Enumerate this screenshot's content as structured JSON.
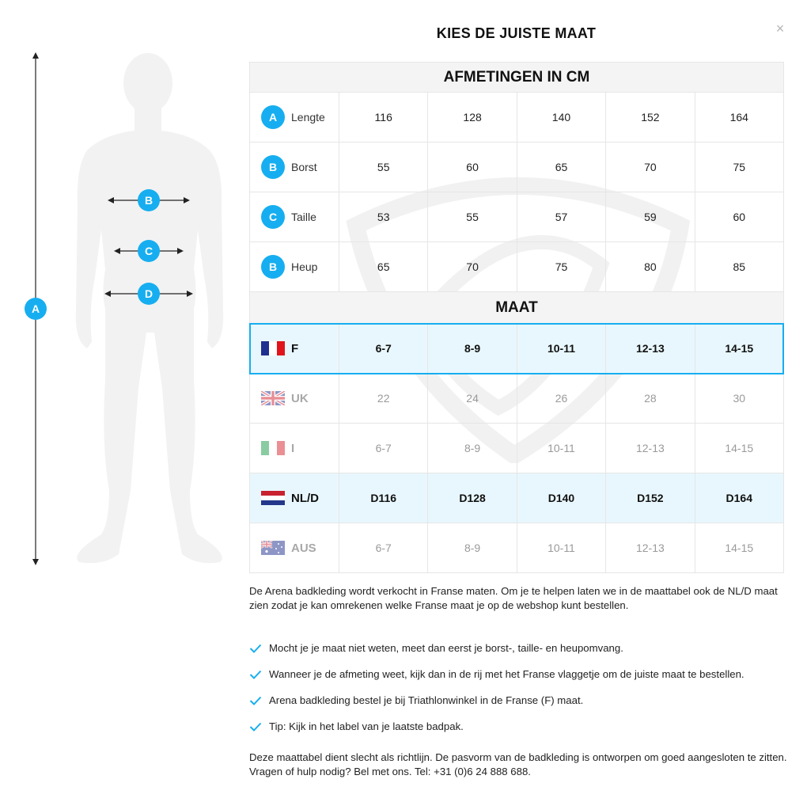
{
  "modal": {
    "title": "KIES DE JUISTE MAAT",
    "close_label": "×"
  },
  "figure": {
    "badges": {
      "a": "A",
      "b": "B",
      "c": "C",
      "d": "D"
    }
  },
  "table": {
    "measurements_heading": "AFMETINGEN IN CM",
    "measurements": [
      {
        "badge": "A",
        "label": "Lengte",
        "values": [
          "116",
          "128",
          "140",
          "152",
          "164"
        ]
      },
      {
        "badge": "B",
        "label": "Borst",
        "values": [
          "55",
          "60",
          "65",
          "70",
          "75"
        ]
      },
      {
        "badge": "C",
        "label": "Taille",
        "values": [
          "53",
          "55",
          "57",
          "59",
          "60"
        ]
      },
      {
        "badge": "B",
        "label": "Heup",
        "values": [
          "65",
          "70",
          "75",
          "80",
          "85"
        ]
      }
    ],
    "sizes_heading": "MAAT",
    "sizes": [
      {
        "flag": "france-flag-icon",
        "code": "F",
        "values": [
          "6-7",
          "8-9",
          "10-11",
          "12-13",
          "14-15"
        ]
      },
      {
        "flag": "uk-flag-icon",
        "code": "UK",
        "values": [
          "22",
          "24",
          "26",
          "28",
          "30"
        ]
      },
      {
        "flag": "italy-flag-icon",
        "code": "I",
        "values": [
          "6-7",
          "8-9",
          "10-11",
          "12-13",
          "14-15"
        ]
      },
      {
        "flag": "netherlands-flag-icon",
        "code": "NL/D",
        "values": [
          "D116",
          "D128",
          "D140",
          "D152",
          "D164"
        ]
      },
      {
        "flag": "australia-flag-icon",
        "code": "AUS",
        "values": [
          "6-7",
          "8-9",
          "10-11",
          "12-13",
          "14-15"
        ]
      }
    ]
  },
  "intro": "De Arena badkleding wordt verkocht in Franse maten. Om je te helpen laten we in de maattabel ook de NL/D maat zien zodat je kan omrekenen welke Franse maat je op de webshop kunt bestellen.",
  "tips": [
    "Mocht je je maat niet weten, meet dan eerst je borst-, taille- en heupomvang.",
    "Wanneer je de afmeting weet, kijk dan in de rij met het Franse vlaggetje om de juiste maat te bestellen.",
    "Arena badkleding bestel je bij Triathlonwinkel in de Franse (F) maat.",
    "Tip: Kijk in het label van je laatste badpak."
  ],
  "footer": "Deze maattabel dient slecht als richtlijn. De pasvorm van de badkleding is ontworpen om goed aangesloten te zitten. Vragen of hulp nodig? Bel met ons. Tel: +31 (0)6 24 888 688.",
  "colors": {
    "accent": "#16aef0",
    "highlight_bg": "#e8f7fd",
    "section_bg": "#f4f4f4"
  }
}
